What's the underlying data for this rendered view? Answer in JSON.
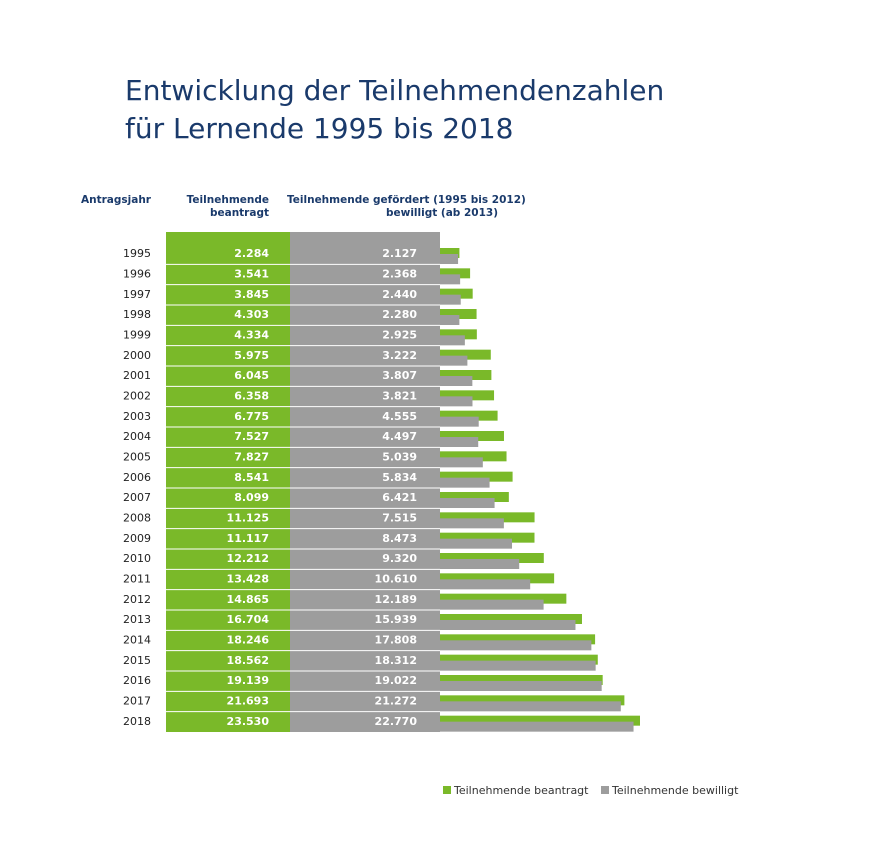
{
  "chart_data": {
    "type": "bar",
    "orientation": "horizontal",
    "title": [
      "Entwicklung der Teilnehmendenzahlen",
      "für Lernende 1995 bis 2018"
    ],
    "column_headers": [
      [
        "Antragsjahr"
      ],
      [
        "Teilnehmende",
        "beantragt"
      ],
      [
        "Teilnehmende gefördert (1995 bis 2012)",
        "bewilligt (ab 2013)"
      ]
    ],
    "categories": [
      "1995",
      "1996",
      "1997",
      "1998",
      "1999",
      "2000",
      "2001",
      "2002",
      "2003",
      "2004",
      "2005",
      "2006",
      "2007",
      "2008",
      "2009",
      "2010",
      "2011",
      "2012",
      "2013",
      "2014",
      "2015",
      "2016",
      "2017",
      "2018"
    ],
    "series": [
      {
        "name": "Teilnehmende beantragt",
        "color": "#7ab929",
        "values": [
          2284,
          3541,
          3845,
          4303,
          4334,
          5975,
          6045,
          6358,
          6775,
          7527,
          7827,
          8541,
          8099,
          11125,
          11117,
          12212,
          13428,
          14865,
          16704,
          18246,
          18562,
          19139,
          21693,
          23530
        ],
        "value_labels": [
          "2.284",
          "3.541",
          "3.845",
          "4.303",
          "4.334",
          "5.975",
          "6.045",
          "6.358",
          "6.775",
          "7.527",
          "7.827",
          "8.541",
          "8.099",
          "11.125",
          "11.117",
          "12.212",
          "13.428",
          "14.865",
          "16.704",
          "18.246",
          "18.562",
          "19.139",
          "21.693",
          "23.530"
        ]
      },
      {
        "name": "Teilnehmende bewilligt",
        "color": "#9d9d9d",
        "values": [
          2127,
          2368,
          2440,
          2280,
          2925,
          3222,
          3807,
          3821,
          4555,
          4497,
          5039,
          5834,
          6421,
          7515,
          8473,
          9320,
          10610,
          12189,
          15939,
          17808,
          18312,
          19022,
          21272,
          22770
        ],
        "value_labels": [
          "2.127",
          "2.368",
          "2.440",
          "2.280",
          "2.925",
          "3.222",
          "3.807",
          "3.821",
          "4.555",
          "4.497",
          "5.039",
          "5.834",
          "6.421",
          "7.515",
          "8.473",
          "9.320",
          "10.610",
          "12.189",
          "15.939",
          "17.808",
          "18.312",
          "19.022",
          "21.272",
          "22.770"
        ]
      }
    ]
  }
}
